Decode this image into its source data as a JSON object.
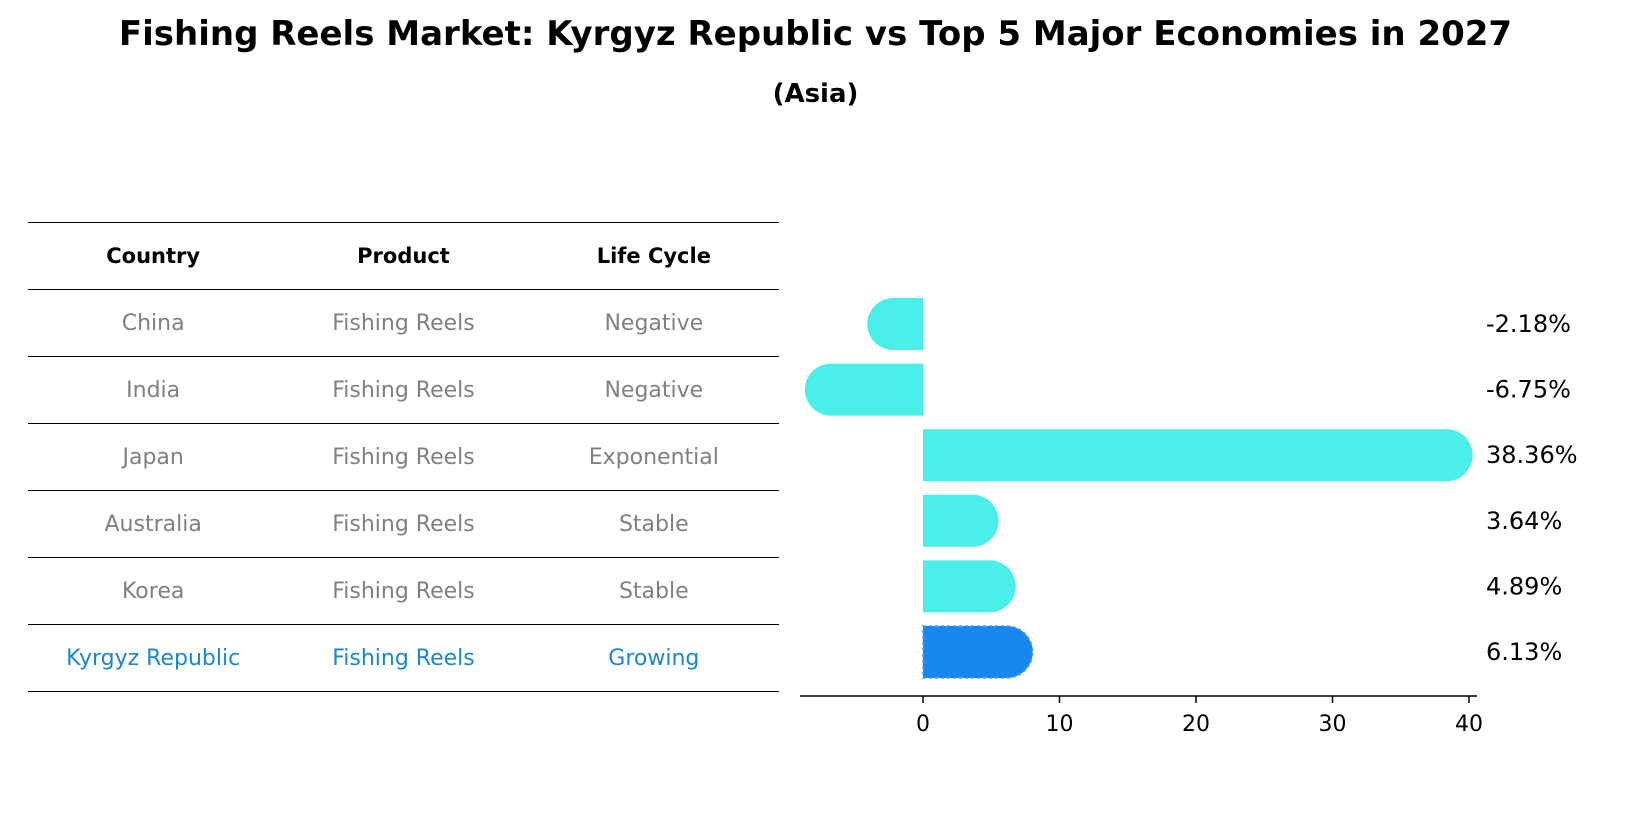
{
  "title": "Fishing Reels Market: Kyrgyz Republic vs Top 5 Major Economies in 2027",
  "subtitle": "(Asia)",
  "table": {
    "headers": [
      "Country",
      "Product",
      "Life Cycle"
    ],
    "rows": [
      [
        "China",
        "Fishing Reels",
        "Negative"
      ],
      [
        "India",
        "Fishing Reels",
        "Negative"
      ],
      [
        "Japan",
        "Fishing Reels",
        "Exponential"
      ],
      [
        "Australia",
        "Fishing Reels",
        "Stable"
      ],
      [
        "Korea",
        "Fishing Reels",
        "Stable"
      ],
      [
        "Kyrgyz Republic",
        "Fishing Reels",
        "Growing"
      ]
    ],
    "highlight_row": 5
  },
  "colors": {
    "bar": "#4ceeea",
    "highlight": "#1a86f0",
    "highlight_text": "#1a86d6",
    "muted_text": "#808080"
  },
  "chart_data": {
    "type": "bar",
    "orientation": "horizontal",
    "categories": [
      "China",
      "India",
      "Japan",
      "Australia",
      "Korea",
      "Kyrgyz Republic"
    ],
    "values": [
      -2.18,
      -6.75,
      38.36,
      3.64,
      4.89,
      6.13
    ],
    "value_labels": [
      "-2.18%",
      "-6.75%",
      "38.36%",
      "3.64%",
      "4.89%",
      "6.13%"
    ],
    "highlight_index": 5,
    "xlim": [
      -9,
      40
    ],
    "xticks": [
      0,
      10,
      20,
      30,
      40
    ],
    "grid": false
  }
}
